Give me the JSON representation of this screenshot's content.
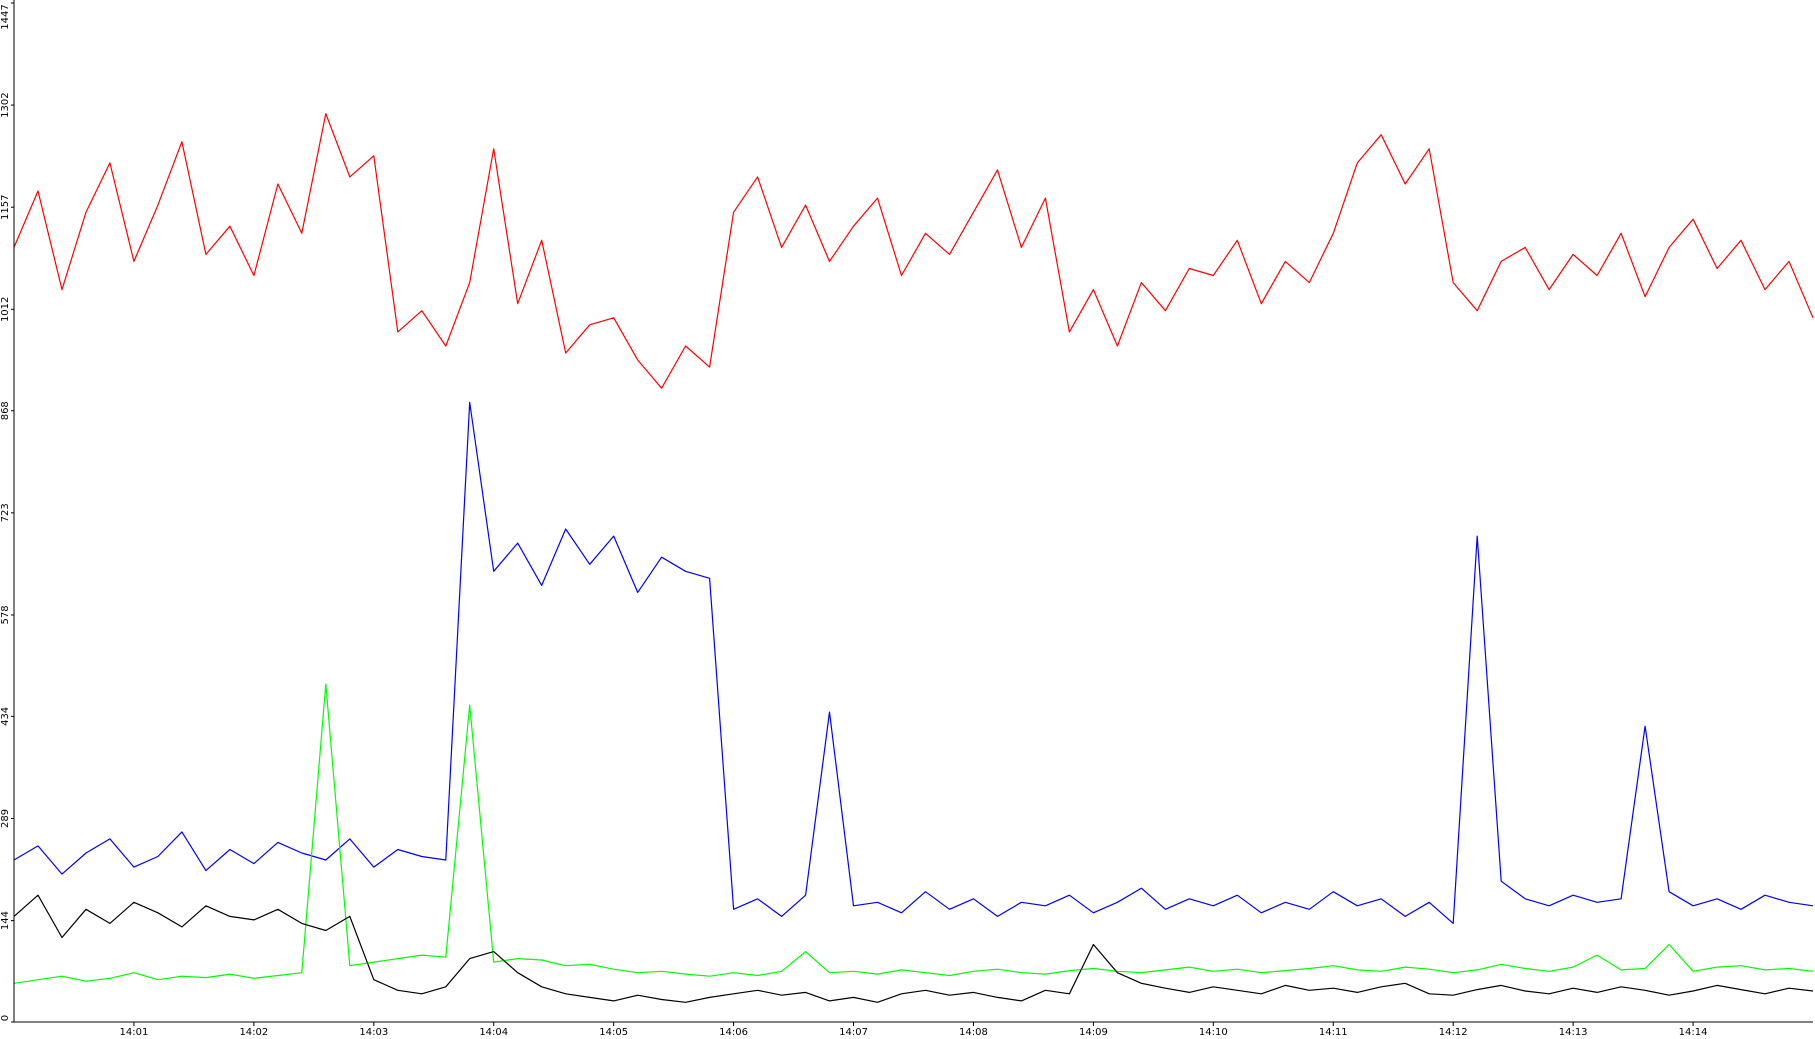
{
  "chart_data": {
    "type": "line",
    "x": [
      0,
      0.2,
      0.4,
      0.6,
      0.8,
      1,
      1.2,
      1.4,
      1.6,
      1.8,
      2,
      2.2,
      2.4,
      2.6,
      2.8,
      3,
      3.2,
      3.4,
      3.6,
      3.8,
      4,
      4.2,
      4.4,
      4.6,
      4.8,
      5,
      5.2,
      5.4,
      5.6,
      5.8,
      6,
      6.2,
      6.4,
      6.6,
      6.8,
      7,
      7.2,
      7.4,
      7.6,
      7.8,
      8,
      8.2,
      8.4,
      8.6,
      8.8,
      9,
      9.2,
      9.4,
      9.6,
      9.8,
      10,
      10.2,
      10.4,
      10.6,
      10.8,
      11,
      11.2,
      11.4,
      11.6,
      11.8,
      12,
      12.2,
      12.4,
      12.6,
      12.8,
      13,
      13.2,
      13.4,
      13.6,
      13.8,
      14,
      14.2,
      14.4,
      14.6,
      14.8,
      15
    ],
    "xlim": [
      0,
      15
    ],
    "xticks": [
      {
        "value": 1,
        "label": "14:01"
      },
      {
        "value": 2,
        "label": "14:02"
      },
      {
        "value": 3,
        "label": "14:03"
      },
      {
        "value": 4,
        "label": "14:04"
      },
      {
        "value": 5,
        "label": "14:05"
      },
      {
        "value": 6,
        "label": "14:06"
      },
      {
        "value": 7,
        "label": "14:07"
      },
      {
        "value": 8,
        "label": "14:08"
      },
      {
        "value": 9,
        "label": "14:09"
      },
      {
        "value": 10,
        "label": "14:10"
      },
      {
        "value": 11,
        "label": "14:11"
      },
      {
        "value": 12,
        "label": "14:12"
      },
      {
        "value": 13,
        "label": "14:13"
      },
      {
        "value": 14,
        "label": "14:14"
      }
    ],
    "ylim": [
      0,
      1447
    ],
    "yticks": [
      0,
      144,
      289,
      434,
      578,
      723,
      868,
      1012,
      1157,
      1302,
      1447
    ],
    "grid": false,
    "series": [
      {
        "color": "#ff0000",
        "values": [
          1100,
          1180,
          1040,
          1150,
          1220,
          1080,
          1160,
          1250,
          1090,
          1130,
          1060,
          1190,
          1120,
          1290,
          1200,
          1230,
          980,
          1010,
          960,
          1050,
          1240,
          1020,
          1110,
          950,
          990,
          1000,
          940,
          900,
          960,
          930,
          1150,
          1200,
          1100,
          1160,
          1080,
          1130,
          1170,
          1060,
          1120,
          1090,
          1150,
          1210,
          1100,
          1170,
          980,
          1040,
          960,
          1050,
          1010,
          1070,
          1060,
          1110,
          1020,
          1080,
          1050,
          1120,
          1220,
          1260,
          1190,
          1240,
          1050,
          1010,
          1080,
          1100,
          1040,
          1090,
          1060,
          1120,
          1030,
          1100,
          1140,
          1070,
          1110,
          1040,
          1080,
          1000
        ]
      },
      {
        "color": "#0000ff",
        "values": [
          230,
          250,
          210,
          240,
          260,
          220,
          235,
          270,
          215,
          245,
          225,
          255,
          240,
          230,
          260,
          220,
          245,
          235,
          230,
          880,
          640,
          680,
          620,
          700,
          650,
          690,
          610,
          660,
          640,
          630,
          160,
          175,
          150,
          180,
          440,
          165,
          170,
          155,
          185,
          160,
          175,
          150,
          170,
          165,
          180,
          155,
          170,
          190,
          160,
          175,
          165,
          180,
          155,
          170,
          160,
          185,
          165,
          175,
          150,
          170,
          140,
          690,
          200,
          175,
          165,
          180,
          170,
          175,
          420,
          185,
          165,
          175,
          160,
          180,
          170,
          165
        ]
      },
      {
        "color": "#00ff00",
        "values": [
          55,
          60,
          65,
          58,
          62,
          70,
          60,
          65,
          63,
          68,
          62,
          66,
          70,
          480,
          80,
          85,
          90,
          95,
          92,
          450,
          85,
          90,
          88,
          80,
          82,
          75,
          70,
          72,
          68,
          65,
          70,
          66,
          72,
          100,
          70,
          72,
          68,
          74,
          70,
          66,
          72,
          75,
          70,
          68,
          73,
          76,
          72,
          70,
          74,
          78,
          72,
          75,
          70,
          73,
          76,
          80,
          74,
          72,
          78,
          75,
          70,
          74,
          82,
          76,
          72,
          78,
          95,
          74,
          76,
          110,
          72,
          78,
          80,
          74,
          76,
          72
        ]
      },
      {
        "color": "#000000",
        "values": [
          150,
          180,
          120,
          160,
          140,
          170,
          155,
          135,
          165,
          150,
          145,
          160,
          140,
          130,
          150,
          60,
          45,
          40,
          50,
          90,
          100,
          70,
          50,
          40,
          35,
          30,
          38,
          32,
          28,
          35,
          40,
          45,
          38,
          42,
          30,
          35,
          28,
          40,
          45,
          38,
          42,
          35,
          30,
          45,
          40,
          110,
          70,
          55,
          48,
          42,
          50,
          45,
          40,
          52,
          45,
          48,
          42,
          50,
          55,
          40,
          38,
          46,
          52,
          44,
          40,
          48,
          42,
          50,
          45,
          38,
          44,
          52,
          46,
          40,
          48,
          44
        ]
      }
    ]
  }
}
